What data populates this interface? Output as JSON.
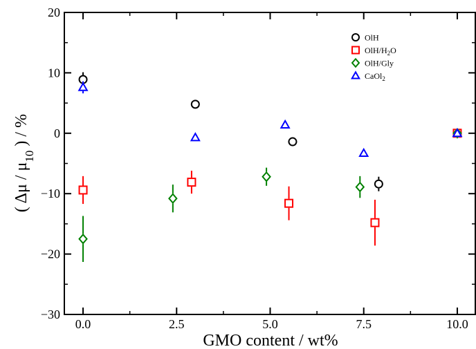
{
  "chart_data": {
    "type": "scatter",
    "title": "",
    "xlabel": "GMO content / wt%",
    "ylabel": {
      "prefix": "( Δμ / μ",
      "sub": "10",
      "suffix": " ) / %"
    },
    "xlim": [
      -0.5,
      10.5
    ],
    "ylim": [
      -30,
      20
    ],
    "xticks": [
      0.0,
      2.5,
      5.0,
      7.5,
      10.0
    ],
    "xtick_labels": [
      "0.0",
      "2.5",
      "5.0",
      "7.5",
      "10.0"
    ],
    "yticks": [
      -30,
      -20,
      -10,
      0,
      10,
      20
    ],
    "ytick_labels": [
      "−30",
      "−20",
      "−10",
      "0",
      "10",
      "20"
    ],
    "legend_position": "top-right",
    "grid": false,
    "series": [
      {
        "name": "OlH",
        "label_parts": [
          {
            "t": "OlH"
          }
        ],
        "marker": "circle",
        "color": "#000000",
        "points": [
          {
            "x": 0.0,
            "y": 8.9,
            "err": 1.2
          },
          {
            "x": 3.0,
            "y": 4.8,
            "err": 0.0
          },
          {
            "x": 5.6,
            "y": -1.4,
            "err": 0.0
          },
          {
            "x": 7.9,
            "y": -8.4,
            "err": 1.2
          },
          {
            "x": 10.0,
            "y": 0.0,
            "err": 0.0
          }
        ]
      },
      {
        "name": "OlH/H2O",
        "label_parts": [
          {
            "t": "OlH/H"
          },
          {
            "t": "2",
            "sub": true
          },
          {
            "t": "O"
          }
        ],
        "marker": "square",
        "color": "#ff0000",
        "points": [
          {
            "x": 0.0,
            "y": -9.4,
            "err": 2.3
          },
          {
            "x": 2.9,
            "y": -8.1,
            "err": 1.9
          },
          {
            "x": 5.5,
            "y": -11.6,
            "err": 2.8
          },
          {
            "x": 7.8,
            "y": -14.8,
            "err": 3.8
          },
          {
            "x": 10.0,
            "y": 0.0,
            "err": 0.0
          }
        ]
      },
      {
        "name": "OlH/Gly",
        "label_parts": [
          {
            "t": "OlH/Gly"
          }
        ],
        "marker": "diamond",
        "color": "#008000",
        "points": [
          {
            "x": 0.0,
            "y": -17.5,
            "err": 3.8
          },
          {
            "x": 2.4,
            "y": -10.8,
            "err": 2.3
          },
          {
            "x": 4.9,
            "y": -7.2,
            "err": 1.5
          },
          {
            "x": 7.4,
            "y": -8.9,
            "err": 1.8
          },
          {
            "x": 10.0,
            "y": 0.0,
            "err": 0.0
          }
        ]
      },
      {
        "name": "CaOl2",
        "label_parts": [
          {
            "t": "CaOl"
          },
          {
            "t": "2",
            "sub": true
          }
        ],
        "marker": "triangle",
        "color": "#0000ff",
        "points": [
          {
            "x": 0.0,
            "y": 7.6,
            "err": 1.0
          },
          {
            "x": 3.0,
            "y": -0.7,
            "err": 0.0
          },
          {
            "x": 5.4,
            "y": 1.4,
            "err": 0.0
          },
          {
            "x": 7.5,
            "y": -3.3,
            "err": 0.0
          },
          {
            "x": 10.0,
            "y": 0.0,
            "err": 0.0
          }
        ]
      }
    ]
  }
}
